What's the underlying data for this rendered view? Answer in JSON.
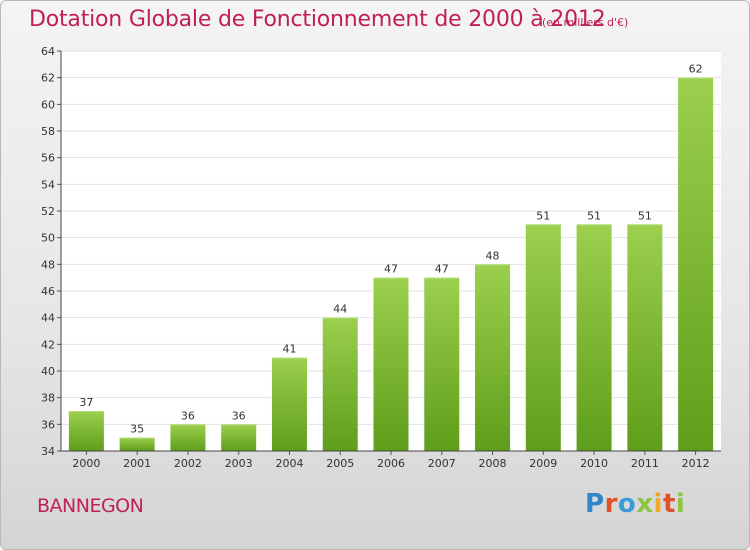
{
  "chart_data": {
    "type": "bar",
    "title": "Dotation Globale de Fonctionnement de 2000 à 2012",
    "subtitle": "(en milliers d'€)",
    "categories": [
      "2000",
      "2001",
      "2002",
      "2003",
      "2004",
      "2005",
      "2006",
      "2007",
      "2008",
      "2009",
      "2010",
      "2011",
      "2012"
    ],
    "values": [
      37,
      35,
      36,
      36,
      41,
      44,
      47,
      47,
      48,
      51,
      51,
      51,
      62
    ],
    "ylim": [
      34,
      64
    ],
    "yticks": [
      34,
      36,
      38,
      40,
      42,
      44,
      46,
      48,
      50,
      52,
      54,
      56,
      58,
      60,
      62,
      64
    ],
    "xlabel": "",
    "ylabel": "",
    "grid": true,
    "bar_color": "#7fbf35"
  },
  "footer": {
    "commune": "BANNEGON",
    "brand": [
      {
        "char": "P",
        "color": "#2f86c8"
      },
      {
        "char": "r",
        "color": "#e0502a"
      },
      {
        "char": "o",
        "color": "#3b9bd6"
      },
      {
        "char": "x",
        "color": "#8cc63f"
      },
      {
        "char": "i",
        "color": "#f1a924"
      },
      {
        "char": "t",
        "color": "#e0502a"
      },
      {
        "char": "i",
        "color": "#8cc63f"
      }
    ]
  }
}
